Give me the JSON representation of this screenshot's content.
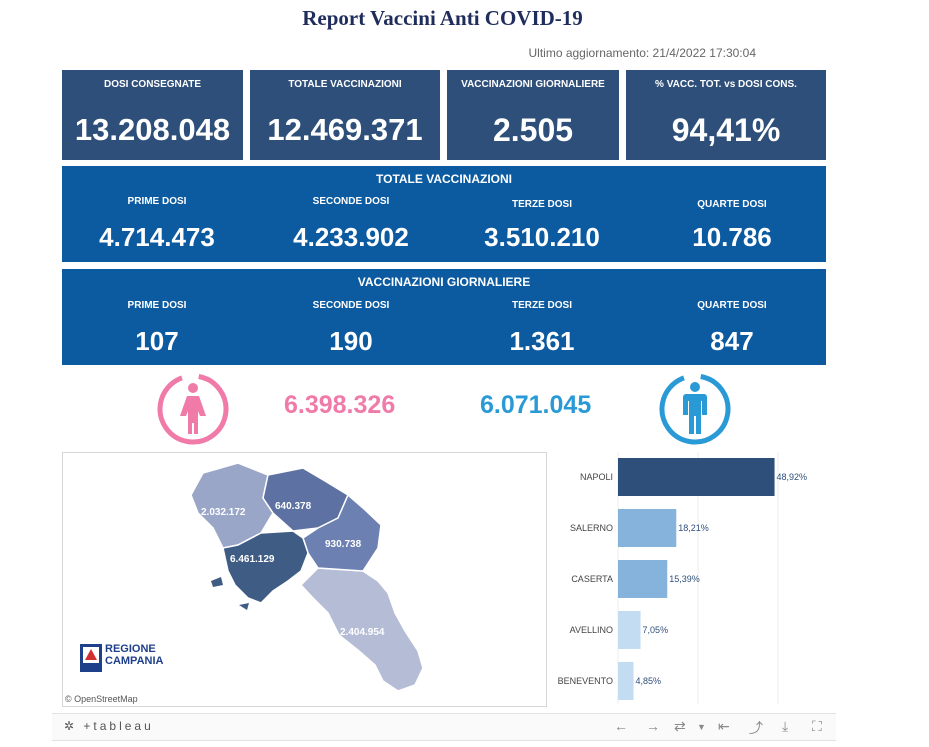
{
  "header": {
    "title": "Report Vaccini Anti COVID-19",
    "updated": "Ultimo aggiornamento: 21/4/2022 17:30:04"
  },
  "kpis": [
    {
      "label": "DOSI  CONSEGNATE",
      "value": "13.208.048"
    },
    {
      "label": "TOTALE VACCINAZIONI",
      "value": "12.469.371"
    },
    {
      "label": "VACCINAZIONI GIORNALIERE",
      "value": "2.505"
    },
    {
      "label": "% VACC. TOT. vs DOSI CONS.",
      "value": "94,41%"
    }
  ],
  "totale": {
    "title": "TOTALE VACCINAZIONI",
    "cells": [
      {
        "label": "PRIME DOSI",
        "value": "4.714.473"
      },
      {
        "label": "SECONDE DOSI",
        "value": "4.233.902"
      },
      {
        "label": "TERZE DOSI",
        "value": "3.510.210"
      },
      {
        "label": "QUARTE DOSI",
        "value": "10.786"
      }
    ]
  },
  "giornaliere": {
    "title": "VACCINAZIONI GIORNALIERE",
    "cells": [
      {
        "label": "PRIME DOSI",
        "value": "107"
      },
      {
        "label": "SECONDE DOSI",
        "value": "190"
      },
      {
        "label": "TERZE DOSI",
        "value": "1.361"
      },
      {
        "label": "QUARTE DOSI",
        "value": "847"
      }
    ]
  },
  "gender": {
    "female_value": "6.398.326",
    "male_value": "6.071.045",
    "female_color": "#f07aa8",
    "male_color": "#2a9ad6",
    "female_icon": "female-icon",
    "male_icon": "male-icon"
  },
  "map": {
    "labels": {
      "caserta": "2.032.172",
      "benevento": "640.378",
      "avellino": "930.738",
      "napoli": "6.461.129",
      "salerno": "2.404.954"
    },
    "logo_line1": "REGIONE",
    "logo_line2": "CAMPANIA",
    "attribution": "© OpenStreetMap"
  },
  "chart_data": {
    "type": "bar",
    "orientation": "horizontal",
    "categories": [
      "NAPOLI",
      "SALERNO",
      "CASERTA",
      "AVELLINO",
      "BENEVENTO"
    ],
    "values": [
      48.92,
      18.21,
      15.39,
      7.05,
      4.85
    ],
    "value_labels": [
      "48,92%",
      "18,21%",
      "15,39%",
      "7,05%",
      "4,85%"
    ],
    "colors": [
      "#2e4f7a",
      "#86b3dc",
      "#86b3dc",
      "#c3dcf1",
      "#c3dcf1"
    ],
    "xlim": [
      0,
      50
    ]
  },
  "footer": {
    "brand": "+tableau",
    "icons": [
      "undo-icon",
      "redo-icon",
      "revert-icon",
      "reset-icon",
      "share-icon",
      "download-icon",
      "fullscreen-icon"
    ]
  }
}
